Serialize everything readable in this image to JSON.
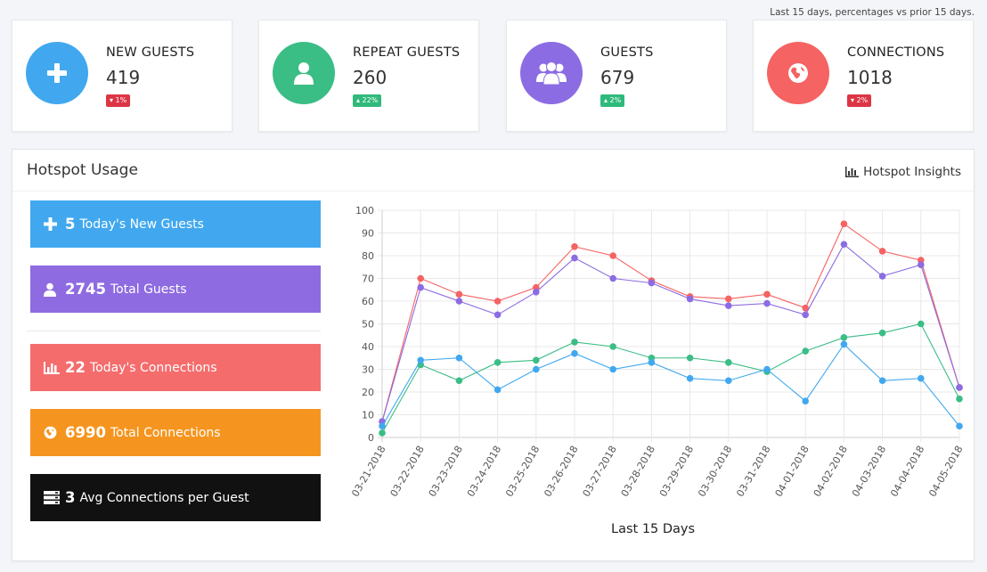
{
  "note": "Last 15 days, percentages vs prior 15 days.",
  "stats": [
    {
      "title": "NEW GUESTS",
      "value": "419",
      "badge": "▾ 1%",
      "trend": "down",
      "color": "#41a8ef",
      "icon": "plus-icon"
    },
    {
      "title": "REPEAT GUESTS",
      "value": "260",
      "badge": "▴ 22%",
      "trend": "up",
      "color": "#3bbd86",
      "icon": "user-icon"
    },
    {
      "title": "GUESTS",
      "value": "679",
      "badge": "▴ 2%",
      "trend": "up",
      "color": "#8c6ce3",
      "icon": "users-icon"
    },
    {
      "title": "CONNECTIONS",
      "value": "1018",
      "badge": "▾ 2%",
      "trend": "down",
      "color": "#f56363",
      "icon": "globe-icon"
    }
  ],
  "panel": {
    "title": "Hotspot Usage",
    "insights_label": "Hotspot Insights",
    "insights_icon": "bar-chart-icon"
  },
  "tiles": [
    {
      "num": "5",
      "label": "Today's New Guests",
      "color": "#41a8ef",
      "icon": "plus-icon"
    },
    {
      "num": "2745",
      "label": "Total Guests",
      "color": "#8f6be1",
      "icon": "user-icon"
    },
    {
      "num": "22",
      "label": "Today's Connections",
      "color": "#f56c6c",
      "icon": "bar-chart-icon"
    },
    {
      "num": "6990",
      "label": "Total Connections",
      "color": "#f5951f",
      "icon": "globe-icon"
    },
    {
      "num": "3",
      "label": "Avg Connections per Guest",
      "color": "#111111",
      "icon": "server-icon"
    }
  ],
  "chart_data": {
    "type": "line",
    "xlabel": "Last 15 Days",
    "ylabel": "",
    "ylim": [
      0,
      100
    ],
    "yticks": [
      0,
      10,
      20,
      30,
      40,
      50,
      60,
      70,
      80,
      90,
      100
    ],
    "grid": true,
    "categories": [
      "03-21-2018",
      "03-22-2018",
      "03-23-2018",
      "03-24-2018",
      "03-25-2018",
      "03-26-2018",
      "03-27-2018",
      "03-28-2018",
      "03-29-2018",
      "03-30-2018",
      "03-31-2018",
      "04-01-2018",
      "04-02-2018",
      "04-03-2018",
      "04-04-2018",
      "04-05-2018"
    ],
    "series": [
      {
        "color": "#f56363",
        "values": [
          7,
          70,
          63,
          60,
          66,
          84,
          80,
          69,
          62,
          61,
          63,
          57,
          94,
          82,
          78,
          22
        ]
      },
      {
        "color": "#8c6ce3",
        "values": [
          7,
          66,
          60,
          54,
          64,
          79,
          70,
          68,
          61,
          58,
          59,
          54,
          85,
          71,
          76,
          22
        ]
      },
      {
        "color": "#3bbd86",
        "values": [
          2,
          32,
          25,
          33,
          34,
          42,
          40,
          35,
          35,
          33,
          29,
          38,
          44,
          46,
          50,
          17
        ]
      },
      {
        "color": "#41a8ef",
        "values": [
          5,
          34,
          35,
          21,
          30,
          37,
          30,
          33,
          26,
          25,
          30,
          16,
          41,
          25,
          26,
          5
        ]
      }
    ]
  }
}
